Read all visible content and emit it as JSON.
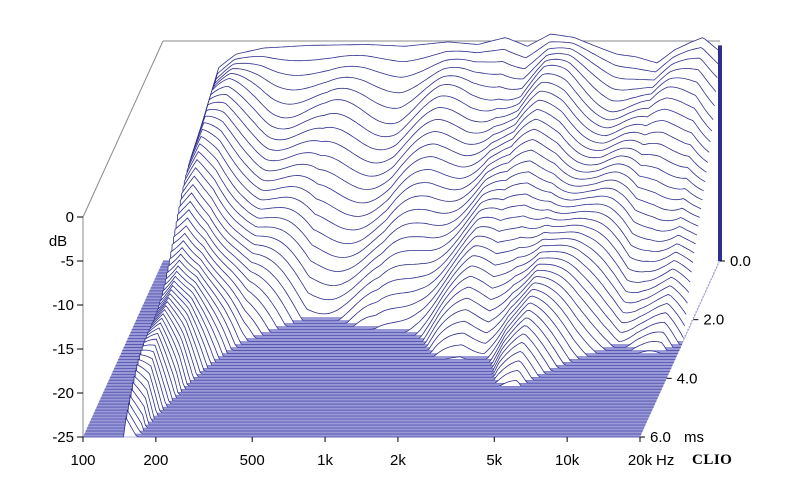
{
  "chart_data": {
    "type": "waterfall",
    "brand": "CLIO",
    "x_axis": {
      "scale": "log",
      "range": [
        100,
        20000
      ],
      "tick_values": [
        100,
        200,
        500,
        1000,
        2000,
        5000,
        10000,
        20000
      ],
      "tick_labels": [
        "100",
        "200",
        "500",
        "1k",
        "2k",
        "5k",
        "10k",
        "20k"
      ],
      "unit": "Hz"
    },
    "y_axis": {
      "unit": "dB",
      "range": [
        -25,
        0
      ],
      "tick_values": [
        0,
        -5,
        -10,
        -15,
        -20,
        -25
      ],
      "tick_labels": [
        "0",
        "-5",
        "-10",
        "-15",
        "-20",
        "-25"
      ]
    },
    "z_axis": {
      "unit": "ms",
      "range": [
        0,
        6
      ],
      "tick_values": [
        0,
        2,
        4,
        6
      ],
      "tick_labels": [
        "0.0",
        "2.0",
        "4.0",
        "6.0"
      ]
    },
    "slice_count": 60,
    "initial_response_db": {
      "freq_hz": [
        150,
        170,
        200,
        260,
        400,
        700,
        1000,
        1500,
        2000,
        2600,
        3200,
        4000,
        5000,
        6000,
        7500,
        9000,
        11000,
        13000,
        15000,
        17000,
        20000
      ],
      "db": [
        -8,
        -3,
        -1.5,
        -0.8,
        -0.5,
        -0.4,
        -0.6,
        -0.1,
        -0.4,
        0.4,
        -0.6,
        0.8,
        0.4,
        -0.5,
        -1.5,
        -1.8,
        -2.5,
        -1.0,
        -0.2,
        0.4,
        -1.2
      ]
    },
    "decay_60ms_db_per_ms": {
      "freq_hz": [
        150,
        200,
        300,
        500,
        1000,
        2000,
        5000,
        10000,
        20000
      ],
      "db_per_ms": [
        2.5,
        5,
        9,
        12,
        11,
        8,
        6,
        7,
        9
      ]
    },
    "colors": {
      "lines": "#2e2e8e",
      "floor": "#9a9ad8",
      "floor_lines": "#6a6ac0",
      "frame": "#8a8a8a"
    }
  }
}
